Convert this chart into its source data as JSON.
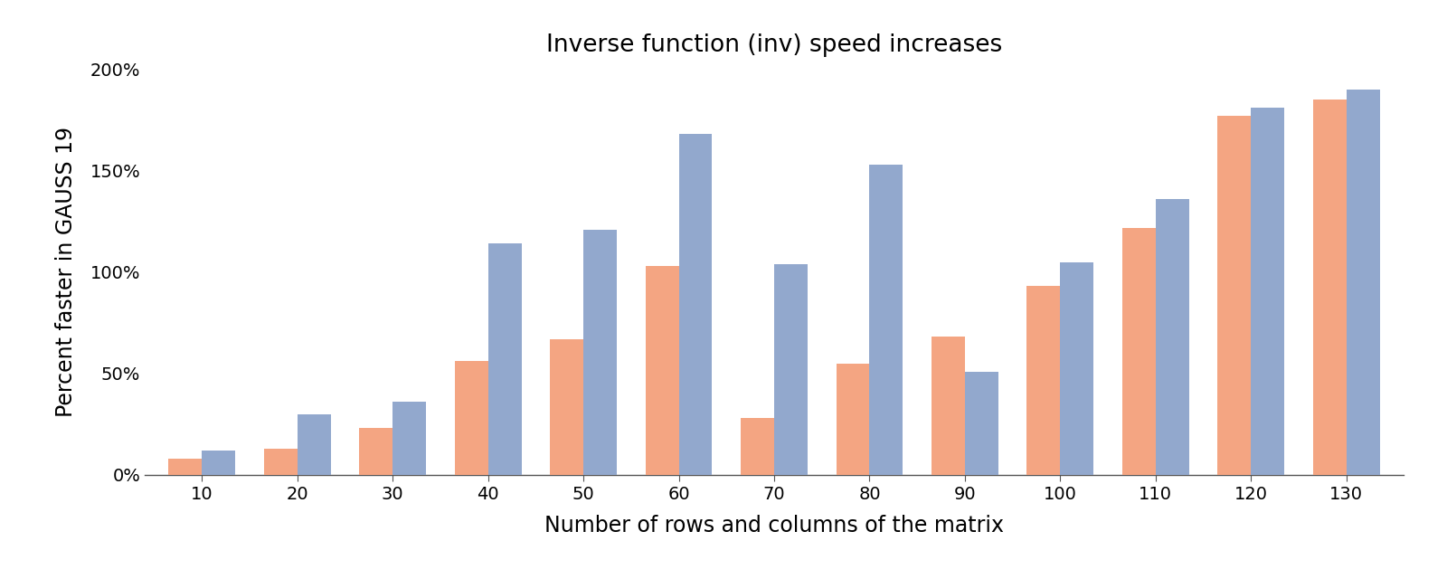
{
  "title": "Inverse function (inv) speed increases",
  "xlabel": "Number of rows and columns of the matrix",
  "ylabel": "Percent faster in GAUSS 19",
  "categories": [
    10,
    20,
    30,
    40,
    50,
    60,
    70,
    80,
    90,
    100,
    110,
    120,
    130
  ],
  "series1_values": [
    8,
    13,
    23,
    56,
    67,
    103,
    28,
    55,
    68,
    93,
    122,
    177,
    185
  ],
  "series2_values": [
    12,
    30,
    36,
    114,
    121,
    168,
    104,
    153,
    51,
    105,
    136,
    181,
    190
  ],
  "color1": "#F4A582",
  "color2": "#92A8CD",
  "ylim": [
    0,
    200
  ],
  "yticks": [
    0,
    50,
    100,
    150,
    200
  ],
  "background_color": "#ffffff",
  "bar_width": 0.35,
  "title_fontsize": 19,
  "axis_label_fontsize": 17,
  "tick_fontsize": 14
}
